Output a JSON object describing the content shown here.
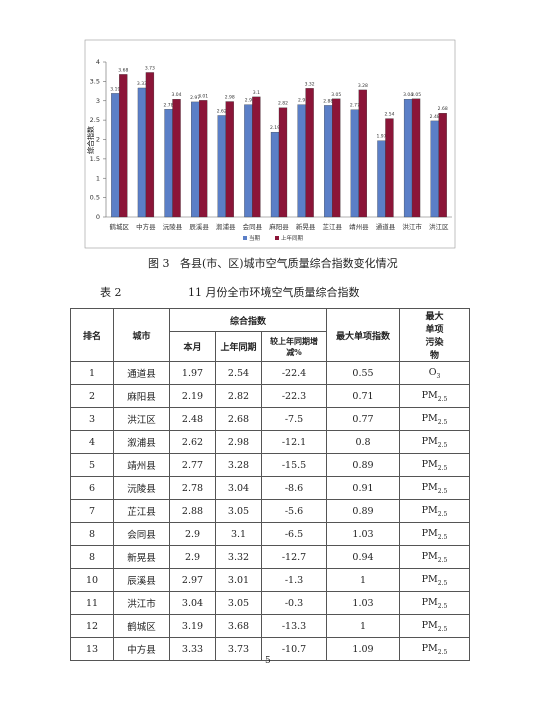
{
  "chart_data": {
    "type": "bar",
    "ylabel": "综合指数",
    "categories": [
      "鹤城区",
      "中方县",
      "沅陵县",
      "辰溪县",
      "溆浦县",
      "会同县",
      "麻阳县",
      "新晃县",
      "芷江县",
      "靖州县",
      "通道县",
      "洪江市",
      "洪江区"
    ],
    "series": [
      {
        "name": "当期",
        "color": "#5b7fc7",
        "values": [
          3.19,
          3.33,
          2.78,
          2.97,
          2.62,
          2.9,
          2.19,
          2.9,
          2.88,
          2.77,
          1.97,
          3.04,
          2.48
        ]
      },
      {
        "name": "上年同期",
        "color": "#8b1538",
        "values": [
          3.68,
          3.73,
          3.04,
          3.01,
          2.98,
          3.1,
          2.82,
          3.32,
          3.05,
          3.28,
          2.54,
          3.05,
          2.68
        ]
      }
    ],
    "ylim": [
      0,
      4
    ],
    "yticks": [
      0,
      0.5,
      1,
      1.5,
      2,
      2.5,
      3,
      3.5,
      4
    ],
    "grid": false
  },
  "figure_caption": "图 3   各县(市、区)城市空气质量综合指数变化情况",
  "table": {
    "label": "表 2",
    "title": "11 月份全市环境空气质量综合指数",
    "headers": {
      "rank": "排名",
      "city": "城市",
      "index": "综合指数",
      "current": "本月",
      "previous": "上年同期",
      "change": "较上年同期增减%",
      "max_index": "最大单项指数",
      "max_pollutant": "最大单项污染物"
    },
    "rows": [
      [
        1,
        "通道县",
        1.97,
        2.54,
        -22.4,
        0.55,
        [
          "O",
          "3"
        ]
      ],
      [
        2,
        "麻阳县",
        2.19,
        2.82,
        -22.3,
        0.71,
        [
          "PM",
          "2.5"
        ]
      ],
      [
        3,
        "洪江区",
        2.48,
        2.68,
        -7.5,
        0.77,
        [
          "PM",
          "2.5"
        ]
      ],
      [
        4,
        "溆浦县",
        2.62,
        2.98,
        -12.1,
        0.8,
        [
          "PM",
          "2.5"
        ]
      ],
      [
        5,
        "靖州县",
        2.77,
        3.28,
        -15.5,
        0.89,
        [
          "PM",
          "2.5"
        ]
      ],
      [
        6,
        "沅陵县",
        2.78,
        3.04,
        -8.6,
        0.91,
        [
          "PM",
          "2.5"
        ]
      ],
      [
        7,
        "芷江县",
        2.88,
        3.05,
        -5.6,
        0.89,
        [
          "PM",
          "2.5"
        ]
      ],
      [
        8,
        "会同县",
        2.9,
        3.1,
        -6.5,
        1.03,
        [
          "PM",
          "2.5"
        ]
      ],
      [
        8,
        "新晃县",
        2.9,
        3.32,
        -12.7,
        0.94,
        [
          "PM",
          "2.5"
        ]
      ],
      [
        10,
        "辰溪县",
        2.97,
        3.01,
        -1.3,
        1,
        [
          "PM",
          "2.5"
        ]
      ],
      [
        11,
        "洪江市",
        3.04,
        3.05,
        -0.3,
        1.03,
        [
          "PM",
          "2.5"
        ]
      ],
      [
        12,
        "鹤城区",
        3.19,
        3.68,
        -13.3,
        1,
        [
          "PM",
          "2.5"
        ]
      ],
      [
        13,
        "中方县",
        3.33,
        3.73,
        -10.7,
        1.09,
        [
          "PM",
          "2.5"
        ]
      ]
    ]
  },
  "page_number": "5"
}
